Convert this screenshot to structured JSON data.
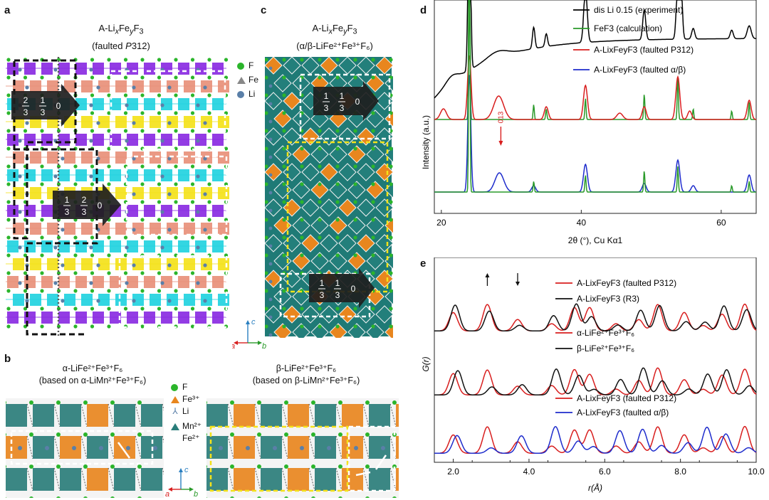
{
  "panels": {
    "a": {
      "letter": "a",
      "title_line1": "A-LixFeyF3",
      "title_line2": "(faulted P312)",
      "legend": [
        {
          "label": "F",
          "color": "#2bb52b",
          "icon": "sphere-icon"
        },
        {
          "label": "Fe",
          "color": "#888888",
          "icon": "triangle-icon"
        },
        {
          "label": "Li",
          "color": "#5a7fa8",
          "icon": "sphere-icon"
        }
      ],
      "arrow1": [
        "2/3",
        "1/3",
        "0"
      ],
      "arrow2": [
        "1/3",
        "2/3",
        "0"
      ],
      "layer_colors": [
        "#8a2be2",
        "#e8907a",
        "#22d3e0",
        "#f4e21a"
      ]
    },
    "b": {
      "letter": "b",
      "left_title1": "α-LiFe²⁺Fe³⁺F₆",
      "left_title2": "(based on α-LiMn²⁺Fe³⁺F₆)",
      "right_title1": "β-LiFe²⁺Fe³⁺F₆",
      "right_title2": "(based on β-LiMn²⁺Fe³⁺F₆)",
      "legend": [
        {
          "label": "F",
          "color": "#2bb52b",
          "icon": "sphere-icon"
        },
        {
          "label": "Fe³⁺",
          "color": "#e8861e",
          "icon": "triangle-icon"
        },
        {
          "label": "Li",
          "color": "#5a7fa8",
          "icon": "tripod-icon"
        },
        {
          "label": "Mn²⁺",
          "color": "#2a7d7a",
          "icon": "triangle-icon"
        },
        {
          "label": "Fe²⁺",
          "color": "#2a7d7a",
          "icon": ""
        }
      ],
      "axis_c": "c",
      "axis_a": "a",
      "axis_b": "b"
    },
    "c": {
      "letter": "c",
      "title_line1": "A-LixFeyF3",
      "title_line2": "(α/β-LiFe²⁺Fe³⁺F₆)",
      "arrow1": [
        "1/3",
        "1/3",
        "0"
      ],
      "arrow2": [
        "1/3",
        "1/3",
        "0"
      ],
      "axis_c": "c",
      "axis_a": "a",
      "axis_b": "b"
    }
  },
  "chart_data": [
    {
      "panel": "d",
      "type": "line",
      "xlabel": "2θ (°), Cu Kα1",
      "ylabel": "Intensity (a.u.)",
      "xlim": [
        19,
        65
      ],
      "xticks": [
        20,
        40,
        60
      ],
      "annotation": "013",
      "annotation_x": 28.2,
      "series": [
        {
          "name": "dis Li 0.15 (experiment)",
          "color": "#000000",
          "offset": 0.0,
          "baseline": 0.82,
          "peaks": [
            [
              24.0,
              1.0,
              0.25
            ],
            [
              33.2,
              0.1,
              0.25
            ],
            [
              35.0,
              0.06,
              0.25
            ],
            [
              40.6,
              0.25,
              0.35
            ],
            [
              49.0,
              0.14,
              0.3
            ],
            [
              53.8,
              0.27,
              0.3
            ],
            [
              54.3,
              0.22,
              0.25
            ],
            [
              56.0,
              0.05,
              0.3
            ],
            [
              61.5,
              0.04,
              0.3
            ],
            [
              64.0,
              0.06,
              0.4
            ]
          ],
          "hump": [
            [
              21.5,
              0.03,
              1.2
            ],
            [
              28.0,
              0.03,
              2.0
            ]
          ]
        },
        {
          "name": "FeF3 (calculation)",
          "color": "#2a9a2a",
          "baseline": 0.44,
          "peaks": [
            [
              24.0,
              1.35,
              0.12
            ],
            [
              33.2,
              0.07,
              0.12
            ],
            [
              35.0,
              0.05,
              0.12
            ],
            [
              40.6,
              0.1,
              0.12
            ],
            [
              49.0,
              0.12,
              0.12
            ],
            [
              53.8,
              0.2,
              0.12
            ],
            [
              56.0,
              0.05,
              0.12
            ],
            [
              61.5,
              0.04,
              0.12
            ],
            [
              64.0,
              0.08,
              0.12
            ]
          ],
          "hump": []
        },
        {
          "name": "A-LixFeyF3 (faulted P312)",
          "color": "#d81e1e",
          "baseline": 0.44,
          "peaks": [
            [
              20.3,
              0.05,
              0.6
            ],
            [
              24.0,
              0.3,
              0.35
            ],
            [
              28.2,
              0.11,
              1.0
            ],
            [
              35.0,
              0.06,
              0.4
            ],
            [
              40.6,
              0.16,
              0.4
            ],
            [
              45.5,
              0.03,
              0.6
            ],
            [
              49.0,
              0.06,
              0.4
            ],
            [
              53.8,
              0.2,
              0.4
            ],
            [
              55.5,
              0.04,
              0.4
            ],
            [
              64.0,
              0.09,
              0.4
            ]
          ],
          "hump": []
        },
        {
          "name": "A-LixFeyF3 (faulted α/β)",
          "color": "#1e2ccc",
          "baseline": 0.1,
          "peaks": [
            [
              24.0,
              0.55,
              0.3
            ],
            [
              28.3,
              0.09,
              0.9
            ],
            [
              33.2,
              0.03,
              0.4
            ],
            [
              40.6,
              0.13,
              0.4
            ],
            [
              49.0,
              0.04,
              0.4
            ],
            [
              53.8,
              0.15,
              0.4
            ],
            [
              56.0,
              0.03,
              0.4
            ],
            [
              64.0,
              0.08,
              0.4
            ]
          ],
          "hump": []
        },
        {
          "name": "FeF3 (lower)",
          "color": "#2a9a2a",
          "baseline": 0.1,
          "legend": false,
          "peaks": [
            [
              24.0,
              1.3,
              0.12
            ],
            [
              33.2,
              0.05,
              0.12
            ],
            [
              40.6,
              0.08,
              0.12
            ],
            [
              49.0,
              0.1,
              0.12
            ],
            [
              53.8,
              0.12,
              0.12
            ],
            [
              61.5,
              0.03,
              0.12
            ],
            [
              64.0,
              0.05,
              0.12
            ]
          ],
          "hump": []
        }
      ],
      "legend": [
        {
          "label": "dis Li 0.15 (experiment)",
          "color": "#000000"
        },
        {
          "label": "FeF3 (calculation)",
          "color": "#2a9a2a"
        },
        {
          "label": "A-LixFeyF3 (faulted P312)",
          "color": "#d81e1e"
        },
        {
          "label": "A-LixFeyF3 (faulted α/β)",
          "color": "#1e2ccc"
        }
      ]
    },
    {
      "panel": "e",
      "type": "line",
      "xlabel": "r(Å)",
      "ylabel": "G(r)",
      "xlim": [
        1.5,
        10.0
      ],
      "xticks": [
        2.0,
        4.0,
        6.0,
        8.0,
        10.0
      ],
      "xtick_labels": [
        "2.0",
        "4.0",
        "6.0",
        "8.0",
        "10.0"
      ],
      "legend": [
        {
          "label": "A-LixFeyF3 (faulted P312)",
          "color": "#d81e1e"
        },
        {
          "label": "A-LixFeyF3 (R3)",
          "color": "#111111"
        },
        {
          "label": "α-LiFe²⁺Fe³⁺F₆",
          "color": "#d81e1e"
        },
        {
          "label": "β-LiFe²⁺Fe³⁺F₆",
          "color": "#111111"
        },
        {
          "label": "A-LixFeyF3 (faulted P312)",
          "color": "#d81e1e"
        },
        {
          "label": "A-LixFeyF3 (faulted α/β)",
          "color": "#1e2ccc"
        }
      ],
      "arrows": [
        {
          "x": 2.9,
          "dir": "up"
        },
        {
          "x": 3.7,
          "dir": "down"
        }
      ]
    }
  ]
}
